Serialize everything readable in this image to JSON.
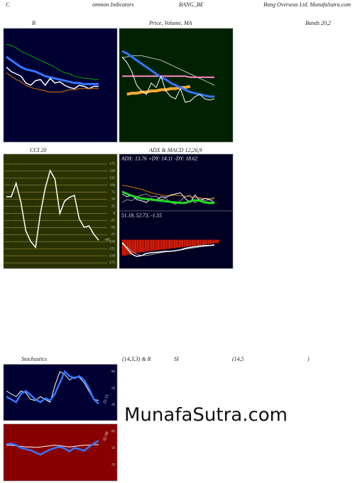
{
  "header": {
    "top": [
      "C",
      "ommon Indicators",
      "BANG_BE",
      "Bang Overseas Ltd. MunafaSutra.com"
    ],
    "captions": [
      "B",
      "Price, Volume, MA",
      "Bands 20,2",
      "CCI 20",
      "ADX  & MACD 12,26,9",
      "Stochastics",
      "(14,3,3) & R",
      "SI",
      "(14,5",
      ")"
    ],
    "watermark": "MunafaSutra.com"
  },
  "chart_data": [
    {
      "type": "line",
      "background": "#000033",
      "ylim": [
        0,
        100
      ],
      "series": [
        {
          "color": "#00aa00",
          "width": 1,
          "values": [
            86,
            85,
            83,
            80,
            78,
            76,
            74,
            72,
            70,
            68,
            66,
            63,
            61,
            60,
            58,
            57,
            56,
            56,
            55,
            55
          ]
        },
        {
          "color": "#3377ff",
          "width": 3,
          "values": [
            75,
            72,
            69,
            66,
            64,
            63,
            62,
            60,
            58,
            57,
            56,
            55,
            54,
            53,
            52,
            52,
            51,
            51,
            51,
            51
          ]
        },
        {
          "color": "#ffffff",
          "width": 1.5,
          "values": [
            66,
            62,
            60,
            58,
            52,
            50,
            54,
            55,
            50,
            56,
            52,
            53,
            50,
            48,
            47,
            50,
            49,
            47,
            49,
            49
          ]
        },
        {
          "color": "#dd7700",
          "width": 1,
          "values": [
            61,
            58,
            55,
            53,
            50,
            48,
            47,
            46,
            45,
            44,
            44,
            44,
            45,
            46,
            46,
            47,
            47,
            47,
            47,
            47
          ]
        }
      ]
    },
    {
      "type": "line",
      "background": "#002200",
      "ylim": [
        0,
        100
      ],
      "series": [
        {
          "color": "#bbbbbb",
          "width": 1,
          "values": [
            74,
            75,
            76,
            76,
            76,
            75,
            74,
            73,
            72,
            70,
            68,
            66,
            64,
            62,
            60,
            58,
            56,
            54,
            52,
            50
          ]
        },
        {
          "color": "#ff88cc",
          "width": 2,
          "values": [
            58,
            58,
            58,
            58,
            58,
            58,
            58,
            58,
            58,
            58,
            58,
            58,
            58,
            58,
            57,
            57,
            57,
            57,
            57,
            57
          ]
        },
        {
          "color": "#ffaa33",
          "width": 4,
          "values": [
            null,
            42,
            43,
            43,
            44,
            44,
            45,
            45,
            46,
            46,
            47,
            47,
            48,
            48,
            49,
            null,
            null,
            null,
            null,
            null
          ]
        },
        {
          "color": "#3377ff",
          "width": 3,
          "values": [
            80,
            78,
            75,
            72,
            69,
            66,
            63,
            60,
            57,
            55,
            52,
            50,
            48,
            46,
            44,
            43,
            42,
            41,
            40,
            40
          ]
        },
        {
          "color": "#ffffff",
          "width": 1,
          "values": [
            75,
            70,
            62,
            50,
            45,
            42,
            52,
            48,
            58,
            45,
            40,
            38,
            47,
            35,
            36,
            40,
            42,
            38,
            37,
            38
          ]
        }
      ]
    },
    {
      "type": "line",
      "background": "#2a3300",
      "grid": true,
      "last_label": true,
      "ylim": [
        -195,
        210
      ],
      "yticks": [
        175,
        150,
        125,
        100,
        75,
        50,
        25,
        0,
        -25,
        -50,
        -75,
        -100,
        -125,
        -150,
        -175
      ],
      "series": [
        {
          "color": "#ffffff",
          "width": 1.5,
          "values": [
            59,
            59,
            107,
            39,
            -62,
            -99,
            -120,
            0,
            89,
            152,
            122,
            0,
            44,
            57,
            64,
            -19,
            -49,
            -44,
            -74,
            -95
          ]
        }
      ]
    },
    {
      "type": "line",
      "background": "#000022",
      "ylim": [
        0,
        100
      ],
      "annotation": "ADX: 13.76  +DY: 14.11 -DY: 18.62",
      "series": [
        {
          "color": "#cc7a00",
          "width": 1,
          "values": [
            45,
            44,
            42,
            40,
            38,
            35,
            32,
            30,
            28,
            27,
            27,
            28,
            27,
            26,
            25,
            24,
            23,
            22,
            22,
            21
          ]
        },
        {
          "color": "#999999",
          "width": 1,
          "values": [
            15,
            20,
            18,
            25,
            28,
            30,
            25,
            26,
            20,
            22,
            15,
            12,
            18,
            25,
            28,
            14,
            22,
            18,
            20,
            24
          ]
        },
        {
          "color": "#ffffff",
          "width": 1,
          "values": [
            30,
            25,
            28,
            20,
            18,
            15,
            22,
            19,
            25,
            24,
            28,
            30,
            32,
            22,
            15,
            28,
            18,
            22,
            20,
            15
          ]
        },
        {
          "color": "#22dd22",
          "width": 3,
          "values": [
            34,
            30,
            27,
            24,
            22,
            21,
            20,
            19,
            18,
            17,
            16,
            15,
            14,
            14,
            17,
            19,
            18,
            15,
            14,
            14
          ]
        }
      ]
    },
    {
      "type": "line",
      "background": "#000022",
      "ylim": [
        -100,
        100
      ],
      "annotation": "51.18, 52.73, -1.55",
      "bars": {
        "color": "#ff2200",
        "values": [
          -55,
          -52,
          -48,
          -45,
          -42,
          -40,
          -38,
          -36,
          -34,
          -32,
          -30,
          -28,
          -26,
          -24,
          -22,
          -20,
          -18,
          -16,
          -14,
          -12
        ]
      },
      "series": [
        {
          "color": "#999999",
          "width": 1,
          "values": [
            -15,
            -25,
            -40,
            -50,
            -55,
            -55,
            -52,
            -48,
            -45,
            -42,
            -40,
            -38,
            -36,
            -33,
            -30,
            -28,
            -25,
            -23,
            -21,
            -20
          ]
        },
        {
          "color": "#ffffff",
          "width": 1.5,
          "values": [
            -10,
            -30,
            -50,
            -58,
            -55,
            -48,
            -45,
            -44,
            -42,
            -40,
            -40,
            -38,
            -35,
            -30,
            -27,
            -24,
            -22,
            -20,
            -20,
            -18
          ]
        }
      ]
    },
    {
      "type": "line",
      "background": "#000033",
      "last_label": true,
      "rotate_label": true,
      "ylim": [
        -8,
        93
      ],
      "yticks": [
        80,
        50,
        20
      ],
      "series": [
        {
          "color": "#ffffff",
          "width": 1,
          "values": [
            45,
            40,
            35,
            45,
            42,
            30,
            28,
            35,
            30,
            25,
            55,
            80,
            75,
            65,
            70,
            70,
            60,
            45,
            30,
            28
          ]
        },
        {
          "color": "#3377ff",
          "width": 2.5,
          "values": [
            35,
            30,
            25,
            40,
            45,
            38,
            30,
            25,
            32,
            28,
            40,
            60,
            80,
            72,
            68,
            72,
            65,
            50,
            30,
            22.15
          ]
        }
      ]
    },
    {
      "type": "line",
      "background": "#880000",
      "last_label": true,
      "rotate_label": true,
      "ylim": [
        -9,
        93
      ],
      "yticks": [
        80,
        50,
        20
      ],
      "series": [
        {
          "color": "#ffffff",
          "width": 1,
          "values": [
            55,
            55,
            54,
            53,
            52,
            52,
            51,
            52,
            53,
            54,
            55,
            54,
            53,
            52,
            53,
            54,
            55,
            55,
            56,
            56
          ]
        },
        {
          "color": "#3377ff",
          "width": 2.5,
          "values": [
            57,
            58,
            55,
            50,
            48,
            46,
            42,
            38,
            43,
            47,
            50,
            52,
            49,
            44,
            50,
            48,
            45,
            52,
            58,
            62.98
          ]
        }
      ]
    }
  ]
}
